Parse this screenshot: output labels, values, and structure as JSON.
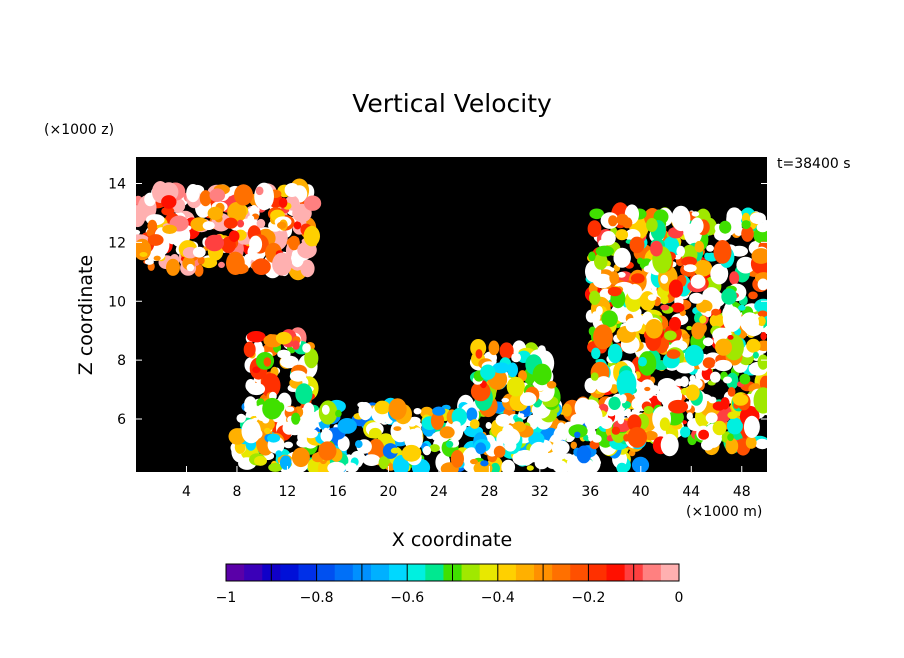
{
  "chart_data": {
    "type": "heatmap",
    "title": "Vertical Velocity",
    "time_label": "t=38400 s",
    "xlabel": "X coordinate",
    "ylabel": "Z coordinate",
    "x_unit": "(×1000 m)",
    "y_unit": "(×1000 z)",
    "xlim": [
      0,
      50
    ],
    "ylim": [
      4.2,
      14.9
    ],
    "x_ticks": [
      4,
      8,
      12,
      16,
      20,
      24,
      28,
      32,
      36,
      40,
      44,
      48
    ],
    "y_ticks": [
      6,
      8,
      10,
      12,
      14
    ],
    "background_color": "#000000",
    "colorbar": {
      "min": -1,
      "max": 0,
      "tick_values": [
        -1,
        -0.8,
        -0.6,
        -0.4,
        -0.2,
        0
      ],
      "tick_labels": [
        "−1",
        "−0.8",
        "−0.6",
        "−0.4",
        "−0.2",
        "0"
      ],
      "colors": [
        "#5a00a8",
        "#3a00b8",
        "#1000c8",
        "#0010d8",
        "#0030e8",
        "#0050f0",
        "#0070f8",
        "#0090ff",
        "#00b0ff",
        "#00d8ff",
        "#00f0e0",
        "#00e890",
        "#40e000",
        "#a0e800",
        "#e8e800",
        "#ffd000",
        "#ffb000",
        "#ff9000",
        "#ff7000",
        "#ff5000",
        "#ff3000",
        "#ff1000",
        "#ff4040",
        "#ff8080",
        "#ffb0b0"
      ]
    },
    "regions": [
      {
        "x": [
          0,
          14
        ],
        "z": [
          11,
          13.8
        ],
        "value": -0.15
      },
      {
        "x": [
          9,
          14
        ],
        "z": [
          5.5,
          8.8
        ],
        "value": -0.3
      },
      {
        "x": [
          8,
          40
        ],
        "z": [
          4.3,
          6.5
        ],
        "value": -0.5
      },
      {
        "x": [
          27,
          33
        ],
        "z": [
          6.5,
          8.5
        ],
        "value": -0.4
      },
      {
        "x": [
          36,
          50
        ],
        "z": [
          5,
          13
        ],
        "value": -0.35
      }
    ]
  }
}
